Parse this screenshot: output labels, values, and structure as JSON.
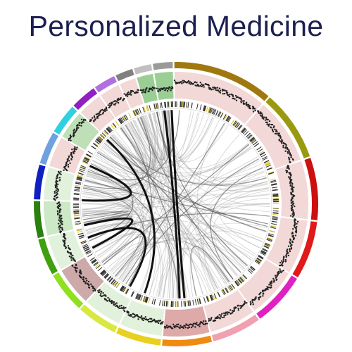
{
  "title": "Personalized Medicine"
}
